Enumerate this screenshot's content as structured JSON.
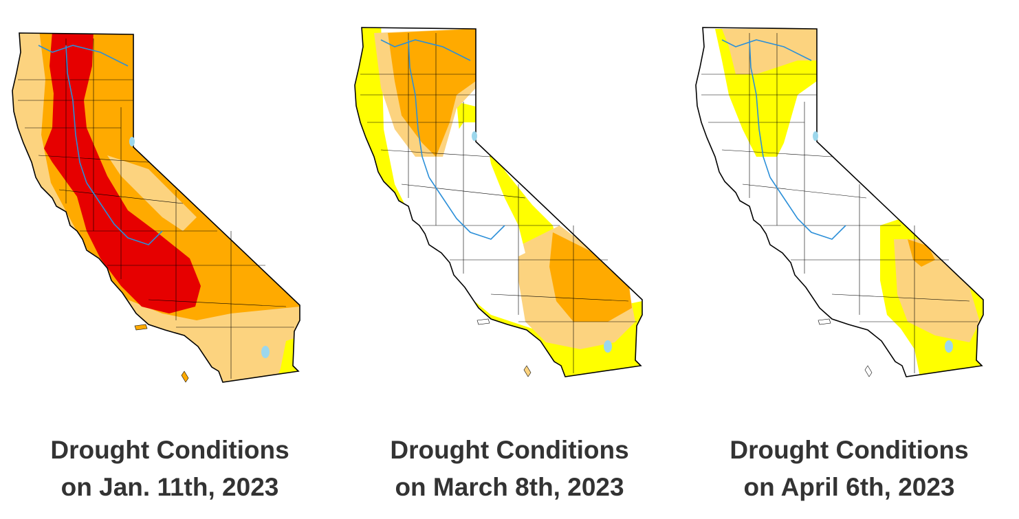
{
  "colors": {
    "none": "#ffffff",
    "D0_abnormally_dry": "#ffff00",
    "D1_moderate": "#fcd37f",
    "D2_severe": "#ffaa00",
    "D3_extreme": "#e60000",
    "water": "#9cd7ec",
    "rivers": "#2b8fd8",
    "borders": "#000000"
  },
  "maps": [
    {
      "caption_line1": "Drought Conditions",
      "caption_line2": "on Jan. 11th, 2023",
      "dominant_categories": [
        "D1_moderate",
        "D2_severe",
        "D3_extreme"
      ]
    },
    {
      "caption_line1": "Drought Conditions",
      "caption_line2": "on March 8th, 2023",
      "dominant_categories": [
        "none",
        "D0_abnormally_dry",
        "D1_moderate",
        "D2_severe"
      ]
    },
    {
      "caption_line1": "Drought Conditions",
      "caption_line2": "on April 6th, 2023",
      "dominant_categories": [
        "none",
        "D0_abnormally_dry",
        "D1_moderate",
        "D2_severe"
      ]
    }
  ]
}
